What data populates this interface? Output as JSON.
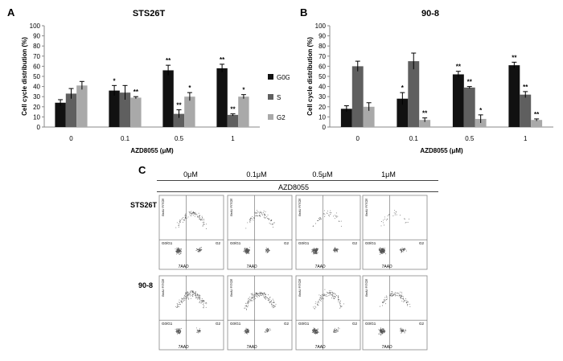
{
  "panels": {
    "a": "A",
    "b": "B",
    "c": "C"
  },
  "legend": [
    "G0G1",
    "S",
    "G2"
  ],
  "colors": {
    "G0G1": "#111111",
    "S": "#5f5f5f",
    "G2": "#a9a9a9"
  },
  "chart_data": [
    {
      "type": "bar",
      "title": "STS26T",
      "xlabel": "AZD8055 (μM)",
      "ylabel": "Cell cycle distribution (%)",
      "ylim": [
        0,
        100
      ],
      "yticks": [
        0,
        10,
        20,
        30,
        40,
        50,
        60,
        70,
        80,
        90,
        100
      ],
      "categories": [
        "0",
        "0.1",
        "0.5",
        "1"
      ],
      "series": [
        {
          "name": "G0G1",
          "values": [
            24,
            36,
            56,
            58
          ],
          "errors": [
            3,
            5,
            5,
            4
          ],
          "sig": [
            "",
            "*",
            "**",
            "**"
          ]
        },
        {
          "name": "S",
          "values": [
            33,
            34,
            13,
            12
          ],
          "errors": [
            5,
            7,
            4,
            1
          ],
          "sig": [
            "",
            "",
            "**",
            "**"
          ]
        },
        {
          "name": "G2",
          "values": [
            41,
            29,
            30,
            30
          ],
          "errors": [
            4,
            1,
            4,
            2
          ],
          "sig": [
            "",
            "**",
            "*",
            "*"
          ]
        }
      ]
    },
    {
      "type": "bar",
      "title": "90-8",
      "xlabel": "AZD8055 (μM)",
      "ylabel": "Cell cycle distribution (%)",
      "ylim": [
        0,
        100
      ],
      "yticks": [
        0,
        10,
        20,
        30,
        40,
        50,
        60,
        70,
        80,
        90,
        100
      ],
      "categories": [
        "0",
        "0.1",
        "0.5",
        "1"
      ],
      "series": [
        {
          "name": "G0G1",
          "values": [
            18,
            28,
            52,
            61
          ],
          "errors": [
            3,
            6,
            3,
            3
          ],
          "sig": [
            "",
            "*",
            "**",
            "**"
          ]
        },
        {
          "name": "S",
          "values": [
            60,
            65,
            39,
            32
          ],
          "errors": [
            5,
            8,
            1,
            3
          ],
          "sig": [
            "",
            "",
            "**",
            "**"
          ]
        },
        {
          "name": "G2",
          "values": [
            20,
            7,
            8,
            7
          ],
          "errors": [
            4,
            2,
            4,
            1
          ],
          "sig": [
            "",
            "**",
            "*",
            "**"
          ]
        }
      ]
    }
  ],
  "flow": {
    "header": "AZD8055",
    "columns": [
      "0μM",
      "0.1μM",
      "0.5μM",
      "1μM"
    ],
    "rows": [
      "STS26T",
      "90-8"
    ],
    "quadrant_labels": {
      "s": "S",
      "g0g1": "G0/G1",
      "g2": "G2"
    },
    "x_axis": "7AAD",
    "y_axis": "BrdU FITC"
  }
}
